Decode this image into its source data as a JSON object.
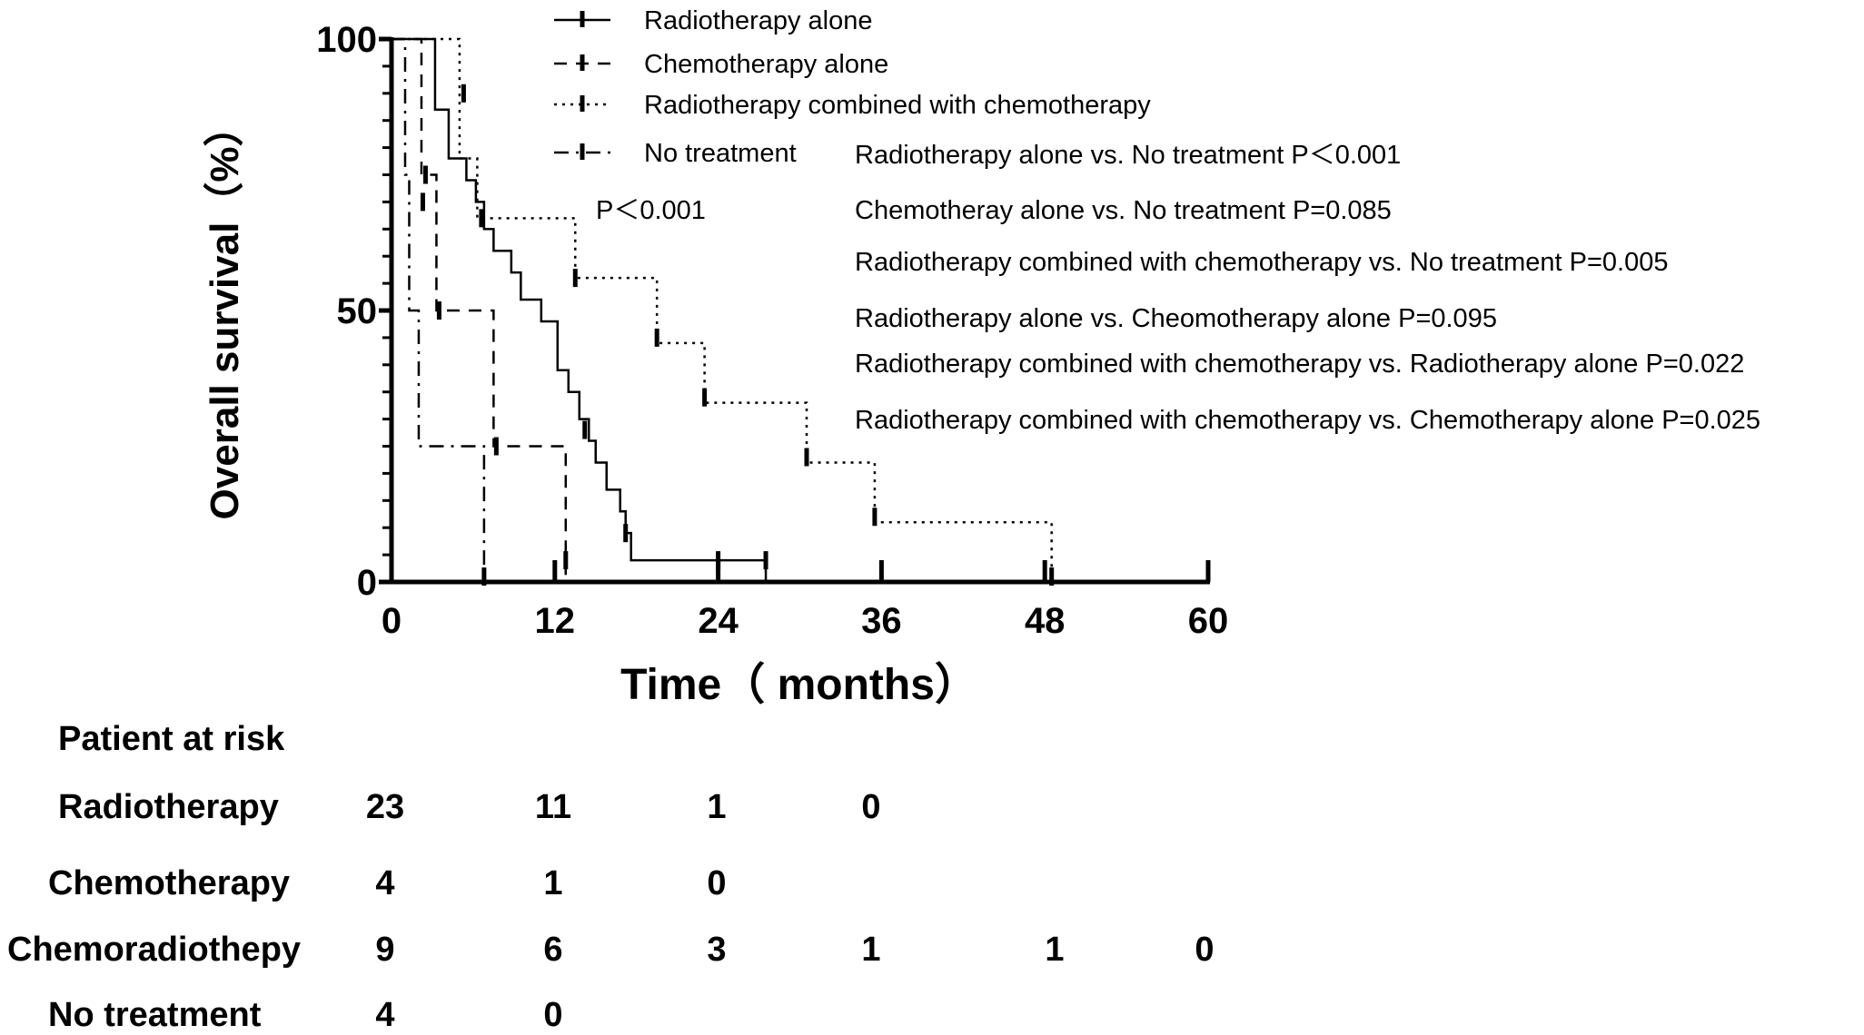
{
  "chart_data": {
    "type": "line",
    "subtype": "kaplan-meier",
    "xlabel": "Time（ months）",
    "ylabel": "Overall survival（%）",
    "xlim": [
      0,
      60
    ],
    "ylim": [
      0,
      100
    ],
    "xticks": [
      "0",
      "12",
      "24",
      "36",
      "48",
      "60"
    ],
    "yticks": [
      "0",
      "50",
      "100"
    ],
    "grid": false,
    "legend_position": "top",
    "series": [
      {
        "name": "Radiotherapy alone",
        "style": "solid",
        "steps": [
          [
            0,
            100
          ],
          [
            3.2,
            87
          ],
          [
            4.2,
            78
          ],
          [
            5.5,
            74
          ],
          [
            6.2,
            70
          ],
          [
            6.8,
            65
          ],
          [
            7.5,
            61
          ],
          [
            8.8,
            57
          ],
          [
            9.5,
            52
          ],
          [
            11,
            48
          ],
          [
            12.2,
            39
          ],
          [
            13,
            35
          ],
          [
            13.8,
            30
          ],
          [
            14.5,
            26
          ],
          [
            15,
            22
          ],
          [
            15.8,
            17
          ],
          [
            16.8,
            13
          ],
          [
            17.2,
            9
          ],
          [
            17.6,
            4
          ],
          [
            27.5,
            0
          ]
        ],
        "censored": [
          [
            6.6,
            67
          ],
          [
            14.2,
            28
          ],
          [
            17.2,
            9
          ],
          [
            24,
            4
          ],
          [
            27.5,
            4
          ]
        ]
      },
      {
        "name": "Chemotherapy alone",
        "style": "dashed",
        "steps": [
          [
            0,
            100
          ],
          [
            2.2,
            75
          ],
          [
            3.3,
            50
          ],
          [
            7.5,
            25
          ],
          [
            12.8,
            0
          ]
        ],
        "censored": [
          [
            2.5,
            75
          ],
          [
            3.5,
            50
          ],
          [
            7.7,
            25
          ],
          [
            12.8,
            4
          ]
        ]
      },
      {
        "name": "Radiotherapy combined with chemotherapy",
        "style": "dotted",
        "steps": [
          [
            0,
            100
          ],
          [
            5,
            78
          ],
          [
            6.3,
            67
          ],
          [
            13.5,
            56
          ],
          [
            19.5,
            44
          ],
          [
            23,
            33
          ],
          [
            30.5,
            22
          ],
          [
            35.5,
            11
          ],
          [
            48.5,
            0
          ]
        ],
        "censored": [
          [
            5.3,
            90
          ],
          [
            13.5,
            56
          ],
          [
            19.5,
            45
          ],
          [
            23,
            34
          ],
          [
            30.5,
            23
          ],
          [
            35.5,
            12
          ],
          [
            48.5,
            1
          ]
        ]
      },
      {
        "name": "No treatment",
        "style": "dashdot",
        "steps": [
          [
            0,
            100
          ],
          [
            1,
            75
          ],
          [
            1.3,
            50
          ],
          [
            2,
            25
          ],
          [
            6.8,
            0
          ]
        ],
        "censored": [
          [
            2.3,
            70
          ],
          [
            6.8,
            1
          ]
        ]
      }
    ],
    "annotations": [
      "P＜0.001",
      "Radiotherapy alone vs. No treatment P＜0.001",
      "Chemotheray alone vs. No treatment P=0.085",
      "Radiotherapy combined with chemotherapy vs. No treatment P=0.005",
      "Radiotherapy alone vs. Cheomotherapy alone P=0.095",
      "Radiotherapy combined with chemotherapy  vs. Radiotherapy alone P=0.022",
      "Radiotherapy combined with chemotherapy  vs. Chemotherapy alone P=0.025"
    ],
    "risk_table": {
      "title": "Patient at risk",
      "rows": [
        {
          "label": "Radiotherapy",
          "values": [
            "23",
            "11",
            "1",
            "0"
          ]
        },
        {
          "label": "Chemotherapy",
          "values": [
            "4",
            "1",
            "0"
          ]
        },
        {
          "label": "Chemoradiothepy",
          "values": [
            "9",
            "6",
            "3",
            "1",
            "1",
            "0"
          ]
        },
        {
          "label": "No treatment",
          "values": [
            "4",
            "0"
          ]
        }
      ]
    }
  }
}
